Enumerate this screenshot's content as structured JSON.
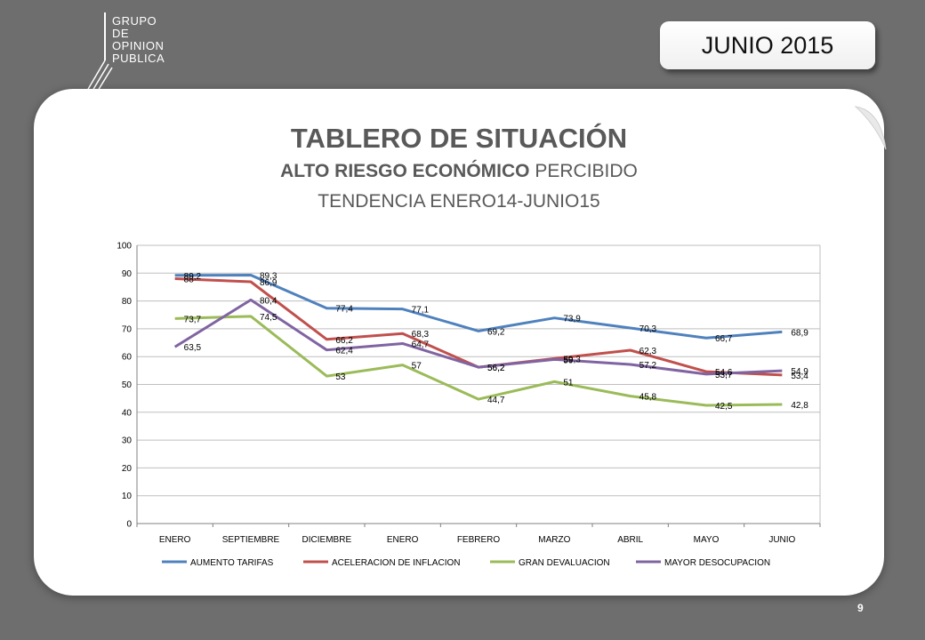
{
  "logo": {
    "lines": [
      "GRUPO",
      "DE",
      "OPINION",
      "PUBLICA"
    ]
  },
  "date_badge": "JUNIO 2015",
  "title": {
    "main": "TABLERO DE SITUACIÓN",
    "sub_bold": "ALTO RIESGO ECONÓMICO",
    "sub_rest": " PERCIBIDO",
    "trend": "TENDENCIA ENERO14-JUNIO15"
  },
  "page_number": "9",
  "chart_data": {
    "type": "line",
    "categories": [
      "ENERO",
      "SEPTIEMBRE",
      "DICIEMBRE",
      "ENERO",
      "FEBRERO",
      "MARZO",
      "ABRIL",
      "MAYO",
      "JUNIO"
    ],
    "ylim": [
      0,
      100
    ],
    "yticks": [
      0,
      10,
      20,
      30,
      40,
      50,
      60,
      70,
      80,
      90,
      100
    ],
    "grid": true,
    "legend": "bottom",
    "series": [
      {
        "name": "AUMENTO TARIFAS",
        "color": "#4f81bd",
        "values": [
          89.2,
          89.3,
          77.4,
          77.1,
          69.2,
          73.9,
          70.3,
          66.7,
          68.9
        ],
        "labels": [
          "89,2",
          "89,3",
          "77,4",
          "77,1",
          "69,2",
          "73,9",
          "70,3",
          "66,7",
          "68,9"
        ]
      },
      {
        "name": "ACELERACION DE INFLACION",
        "color": "#c0504d",
        "values": [
          88,
          86.9,
          66.2,
          68.3,
          56.2,
          59.3,
          62.3,
          54.6,
          53.4
        ],
        "labels": [
          "88",
          "86,9",
          "66,2",
          "68,3",
          "56,2",
          "59,3",
          "62,3",
          "54,6",
          "53,4"
        ]
      },
      {
        "name": "GRAN DEVALUACION",
        "color": "#9bbb59",
        "values": [
          73.7,
          74.5,
          53,
          57,
          44.7,
          51,
          45.8,
          42.5,
          42.8
        ],
        "labels": [
          "73,7",
          "74,5",
          "53",
          "57",
          "44,7",
          "51",
          "45,8",
          "42,5",
          "42,8"
        ]
      },
      {
        "name": "MAYOR DESOCUPACION",
        "color": "#8064a2",
        "values": [
          63.5,
          80.4,
          62.4,
          64.7,
          56.2,
          59,
          57.2,
          53.7,
          54.9
        ],
        "labels": [
          "63,5",
          "80,4",
          "62,4",
          "64,7",
          "56,2",
          "59",
          "57,2",
          "53,7",
          "54,9"
        ]
      }
    ]
  }
}
